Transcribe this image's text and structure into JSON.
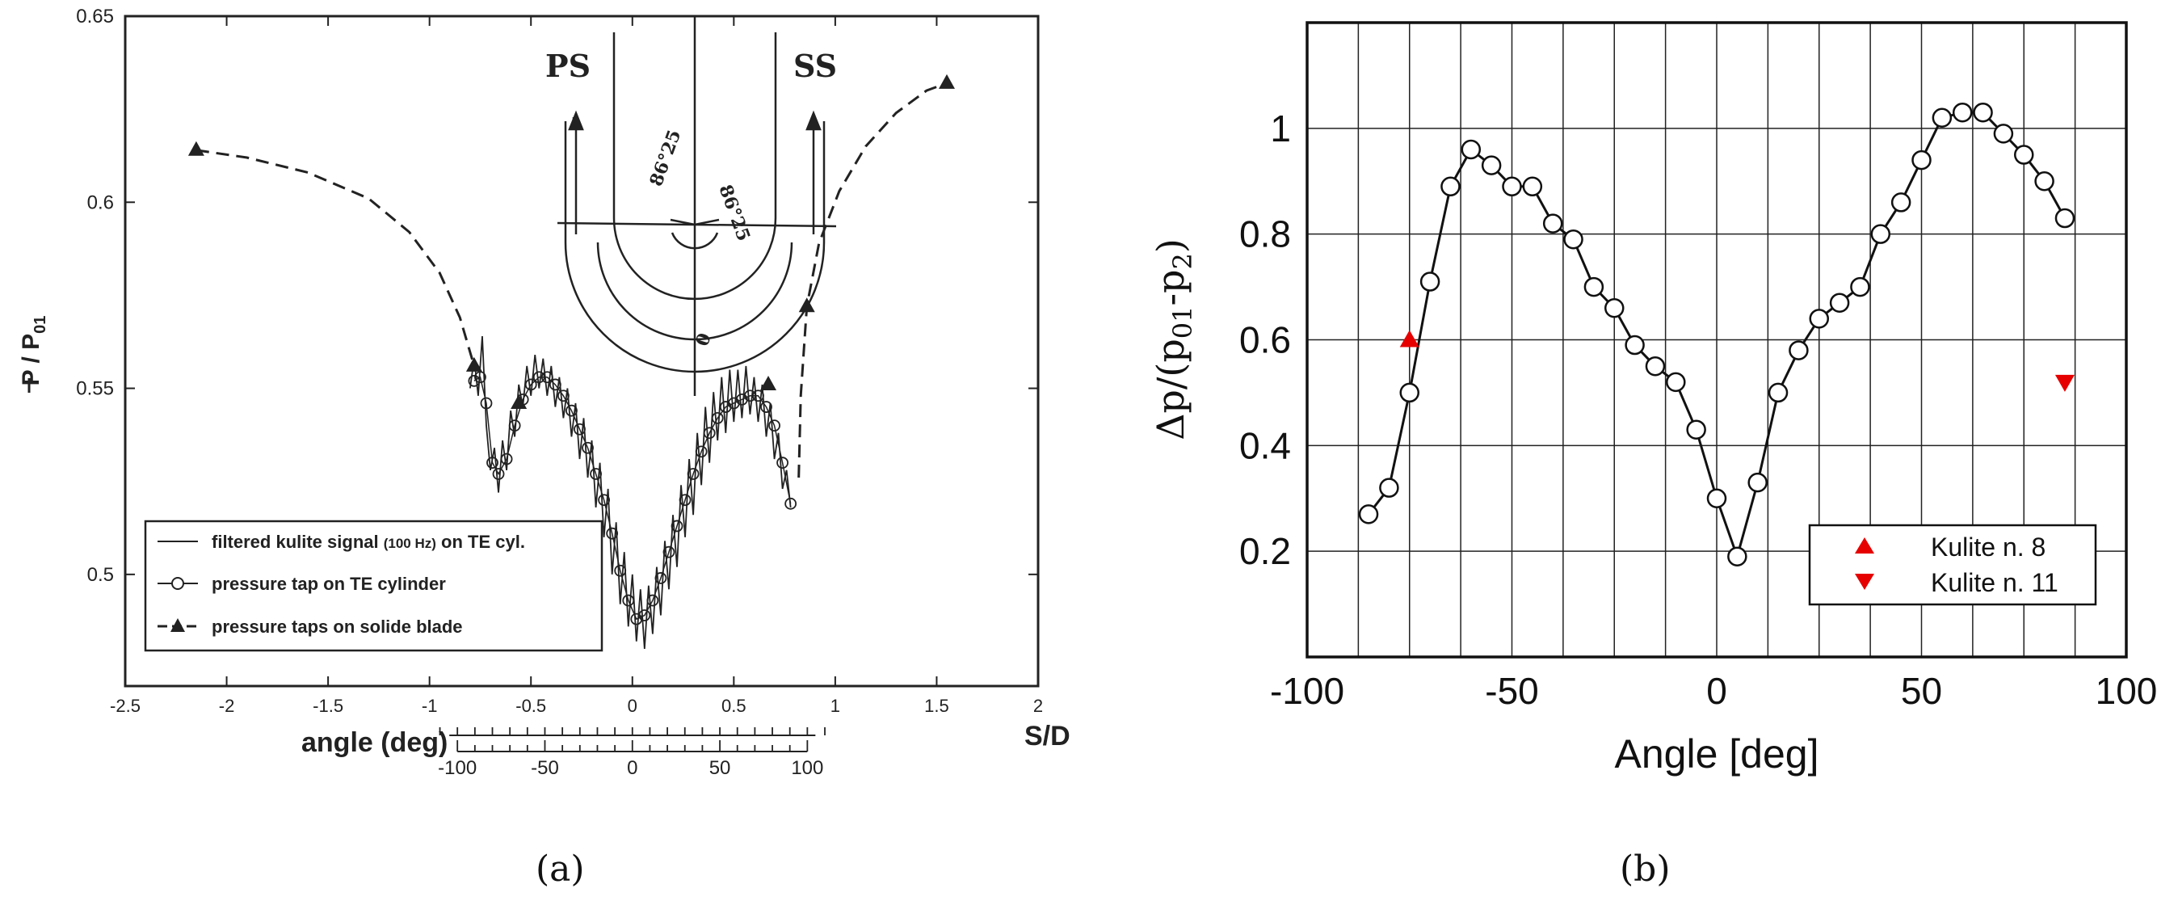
{
  "chart_data": [
    {
      "type": "line",
      "panel_label": "(a)",
      "xlabel": "angle (deg)",
      "x2label": "S/D",
      "ylabel": "P / P",
      "ylabel_sub": "01",
      "xlim": [
        -2.5,
        2.0
      ],
      "ylim": [
        0.47,
        0.65
      ],
      "x_ticks": [
        "-2.5",
        "-2",
        "-1.5",
        "-1",
        "-0.5",
        "0",
        "0.5",
        "1",
        "1.5",
        "2"
      ],
      "x_tick_values": [
        -2.5,
        -2,
        -1.5,
        -1,
        -0.5,
        0,
        0.5,
        1,
        1.5,
        2
      ],
      "y_ticks": [
        "0.5",
        "0.55",
        "0.6",
        "0.65"
      ],
      "y_tick_values": [
        0.5,
        0.55,
        0.6,
        0.65
      ],
      "angle_scale": {
        "ticks": [
          "-100",
          "-50",
          "0",
          "50",
          "100"
        ],
        "values": [
          -100,
          -50,
          0,
          50,
          100
        ],
        "sd_per_deg": 0.008625
      },
      "grid": false,
      "legend_position": "bottom-left",
      "legend": [
        {
          "label": "filtered kulite signal ",
          "label_small": "(100 Hz)",
          "label_tail": " on TE cyl.",
          "marker": "line"
        },
        {
          "label": "pressure tap on TE cylinder",
          "marker": "circle"
        },
        {
          "label": "pressure taps on solide blade",
          "marker": "triangle"
        }
      ],
      "series": [
        {
          "name": "pressure taps on solide blade",
          "style": "dashed-triangle",
          "segments": [
            [
              [
                -2.15,
                0.614
              ],
              [
                -1.9,
                0.612
              ],
              [
                -1.6,
                0.608
              ],
              [
                -1.3,
                0.601
              ],
              [
                -1.1,
                0.592
              ],
              [
                -0.95,
                0.581
              ],
              [
                -0.85,
                0.569
              ],
              [
                -0.78,
                0.556
              ]
            ],
            [
              [
                0.82,
                0.526
              ],
              [
                0.83,
                0.548
              ],
              [
                0.86,
                0.572
              ],
              [
                0.92,
                0.589
              ],
              [
                1.02,
                0.603
              ],
              [
                1.15,
                0.615
              ],
              [
                1.3,
                0.624
              ],
              [
                1.45,
                0.63
              ],
              [
                1.55,
                0.632
              ]
            ]
          ],
          "points": [
            [
              -2.15,
              0.614
            ],
            [
              -0.78,
              0.556
            ],
            [
              -0.56,
              0.546
            ],
            [
              0.67,
              0.551
            ],
            [
              0.86,
              0.572
            ],
            [
              1.55,
              0.632
            ]
          ]
        },
        {
          "name": "pressure tap on TE cylinder",
          "style": "line-circle",
          "points": [
            [
              -0.78,
              0.552
            ],
            [
              -0.75,
              0.553
            ],
            [
              -0.72,
              0.546
            ],
            [
              -0.69,
              0.53
            ],
            [
              -0.66,
              0.527
            ],
            [
              -0.62,
              0.531
            ],
            [
              -0.58,
              0.54
            ],
            [
              -0.54,
              0.547
            ],
            [
              -0.5,
              0.551
            ],
            [
              -0.46,
              0.553
            ],
            [
              -0.42,
              0.553
            ],
            [
              -0.38,
              0.551
            ],
            [
              -0.34,
              0.548
            ],
            [
              -0.3,
              0.544
            ],
            [
              -0.26,
              0.539
            ],
            [
              -0.22,
              0.534
            ],
            [
              -0.18,
              0.527
            ],
            [
              -0.14,
              0.52
            ],
            [
              -0.1,
              0.511
            ],
            [
              -0.06,
              0.501
            ],
            [
              -0.02,
              0.493
            ],
            [
              0.02,
              0.488
            ],
            [
              0.06,
              0.489
            ],
            [
              0.1,
              0.493
            ],
            [
              0.14,
              0.499
            ],
            [
              0.18,
              0.506
            ],
            [
              0.22,
              0.513
            ],
            [
              0.26,
              0.52
            ],
            [
              0.3,
              0.527
            ],
            [
              0.34,
              0.533
            ],
            [
              0.38,
              0.538
            ],
            [
              0.42,
              0.542
            ],
            [
              0.46,
              0.545
            ],
            [
              0.5,
              0.546
            ],
            [
              0.54,
              0.547
            ],
            [
              0.58,
              0.548
            ],
            [
              0.62,
              0.548
            ],
            [
              0.66,
              0.545
            ],
            [
              0.7,
              0.54
            ],
            [
              0.74,
              0.53
            ],
            [
              0.78,
              0.519
            ]
          ]
        },
        {
          "name": "filtered kulite signal (100 Hz) on TE cyl.",
          "style": "noisy-line",
          "points": [
            [
              -0.8,
              0.55
            ],
            [
              -0.78,
              0.558
            ],
            [
              -0.76,
              0.548
            ],
            [
              -0.74,
              0.564
            ],
            [
              -0.72,
              0.54
            ],
            [
              -0.7,
              0.528
            ],
            [
              -0.68,
              0.534
            ],
            [
              -0.66,
              0.522
            ],
            [
              -0.64,
              0.536
            ],
            [
              -0.62,
              0.528
            ],
            [
              -0.6,
              0.544
            ],
            [
              -0.58,
              0.537
            ],
            [
              -0.56,
              0.551
            ],
            [
              -0.54,
              0.545
            ],
            [
              -0.52,
              0.556
            ],
            [
              -0.5,
              0.548
            ],
            [
              -0.48,
              0.559
            ],
            [
              -0.46,
              0.55
            ],
            [
              -0.44,
              0.558
            ],
            [
              -0.42,
              0.548
            ],
            [
              -0.4,
              0.556
            ],
            [
              -0.38,
              0.545
            ],
            [
              -0.36,
              0.553
            ],
            [
              -0.34,
              0.542
            ],
            [
              -0.32,
              0.55
            ],
            [
              -0.3,
              0.537
            ],
            [
              -0.28,
              0.546
            ],
            [
              -0.26,
              0.531
            ],
            [
              -0.24,
              0.542
            ],
            [
              -0.22,
              0.526
            ],
            [
              -0.2,
              0.536
            ],
            [
              -0.18,
              0.518
            ],
            [
              -0.16,
              0.53
            ],
            [
              -0.14,
              0.51
            ],
            [
              -0.12,
              0.523
            ],
            [
              -0.1,
              0.5
            ],
            [
              -0.08,
              0.514
            ],
            [
              -0.06,
              0.492
            ],
            [
              -0.04,
              0.506
            ],
            [
              -0.02,
              0.486
            ],
            [
              0.0,
              0.5
            ],
            [
              0.02,
              0.482
            ],
            [
              0.04,
              0.496
            ],
            [
              0.06,
              0.48
            ],
            [
              0.08,
              0.497
            ],
            [
              0.1,
              0.484
            ],
            [
              0.12,
              0.502
            ],
            [
              0.14,
              0.489
            ],
            [
              0.16,
              0.509
            ],
            [
              0.18,
              0.496
            ],
            [
              0.2,
              0.516
            ],
            [
              0.22,
              0.502
            ],
            [
              0.24,
              0.524
            ],
            [
              0.26,
              0.51
            ],
            [
              0.28,
              0.531
            ],
            [
              0.3,
              0.516
            ],
            [
              0.32,
              0.538
            ],
            [
              0.34,
              0.524
            ],
            [
              0.36,
              0.545
            ],
            [
              0.38,
              0.53
            ],
            [
              0.4,
              0.549
            ],
            [
              0.42,
              0.536
            ],
            [
              0.44,
              0.553
            ],
            [
              0.46,
              0.538
            ],
            [
              0.48,
              0.555
            ],
            [
              0.5,
              0.541
            ],
            [
              0.52,
              0.555
            ],
            [
              0.54,
              0.542
            ],
            [
              0.56,
              0.556
            ],
            [
              0.58,
              0.543
            ],
            [
              0.6,
              0.553
            ],
            [
              0.62,
              0.541
            ],
            [
              0.64,
              0.551
            ],
            [
              0.66,
              0.537
            ],
            [
              0.68,
              0.546
            ],
            [
              0.7,
              0.531
            ],
            [
              0.72,
              0.538
            ],
            [
              0.74,
              0.523
            ],
            [
              0.76,
              0.528
            ],
            [
              0.78,
              0.518
            ]
          ]
        }
      ],
      "inset": {
        "labels": {
          "left": "PS",
          "right": "SS",
          "angle_left": "86°25",
          "angle_right": "86°25",
          "zero": "0"
        }
      }
    },
    {
      "type": "scatter",
      "panel_label": "(b)",
      "xlabel": "Angle [deg]",
      "ylabel": "Δp/(p",
      "ylabel_sub1": "01",
      "ylabel_mid": "-p",
      "ylabel_sub2": "2",
      "ylabel_tail": ")",
      "xlim": [
        -100,
        100
      ],
      "ylim": [
        0,
        1.2
      ],
      "x_ticks": [
        "-100",
        "-50",
        "0",
        "50",
        "100"
      ],
      "x_tick_values": [
        -100,
        -50,
        0,
        50,
        100
      ],
      "y_ticks": [
        "0.2",
        "0.4",
        "0.6",
        "0.8",
        "1"
      ],
      "y_tick_values": [
        0.2,
        0.4,
        0.6,
        0.8,
        1.0
      ],
      "grid": true,
      "grid_step_x": 12.5,
      "legend_position": "bottom-right",
      "series": [
        {
          "name": "",
          "style": "line-circle",
          "x": [
            -85,
            -80,
            -75,
            -70,
            -65,
            -60,
            -55,
            -50,
            -45,
            -40,
            -35,
            -30,
            -25,
            -20,
            -15,
            -10,
            -5,
            0,
            5,
            10,
            15,
            20,
            25,
            30,
            35,
            40,
            45,
            50,
            55,
            60,
            65,
            70,
            75,
            80,
            85
          ],
          "y": [
            0.27,
            0.32,
            0.5,
            0.71,
            0.89,
            0.96,
            0.93,
            0.89,
            0.89,
            0.82,
            0.79,
            0.7,
            0.66,
            0.59,
            0.55,
            0.52,
            0.43,
            0.3,
            0.19,
            0.33,
            0.5,
            0.58,
            0.64,
            0.67,
            0.7,
            0.8,
            0.86,
            0.94,
            1.02,
            1.03,
            1.03,
            0.99,
            0.95,
            0.9,
            0.83
          ]
        },
        {
          "name": "Kulite n. 8",
          "style": "triangle-up",
          "color": "#e60000",
          "x": [
            -75
          ],
          "y": [
            0.6
          ]
        },
        {
          "name": "Kulite n. 11",
          "style": "triangle-down",
          "color": "#e60000",
          "x": [
            85
          ],
          "y": [
            0.52
          ]
        }
      ]
    }
  ]
}
